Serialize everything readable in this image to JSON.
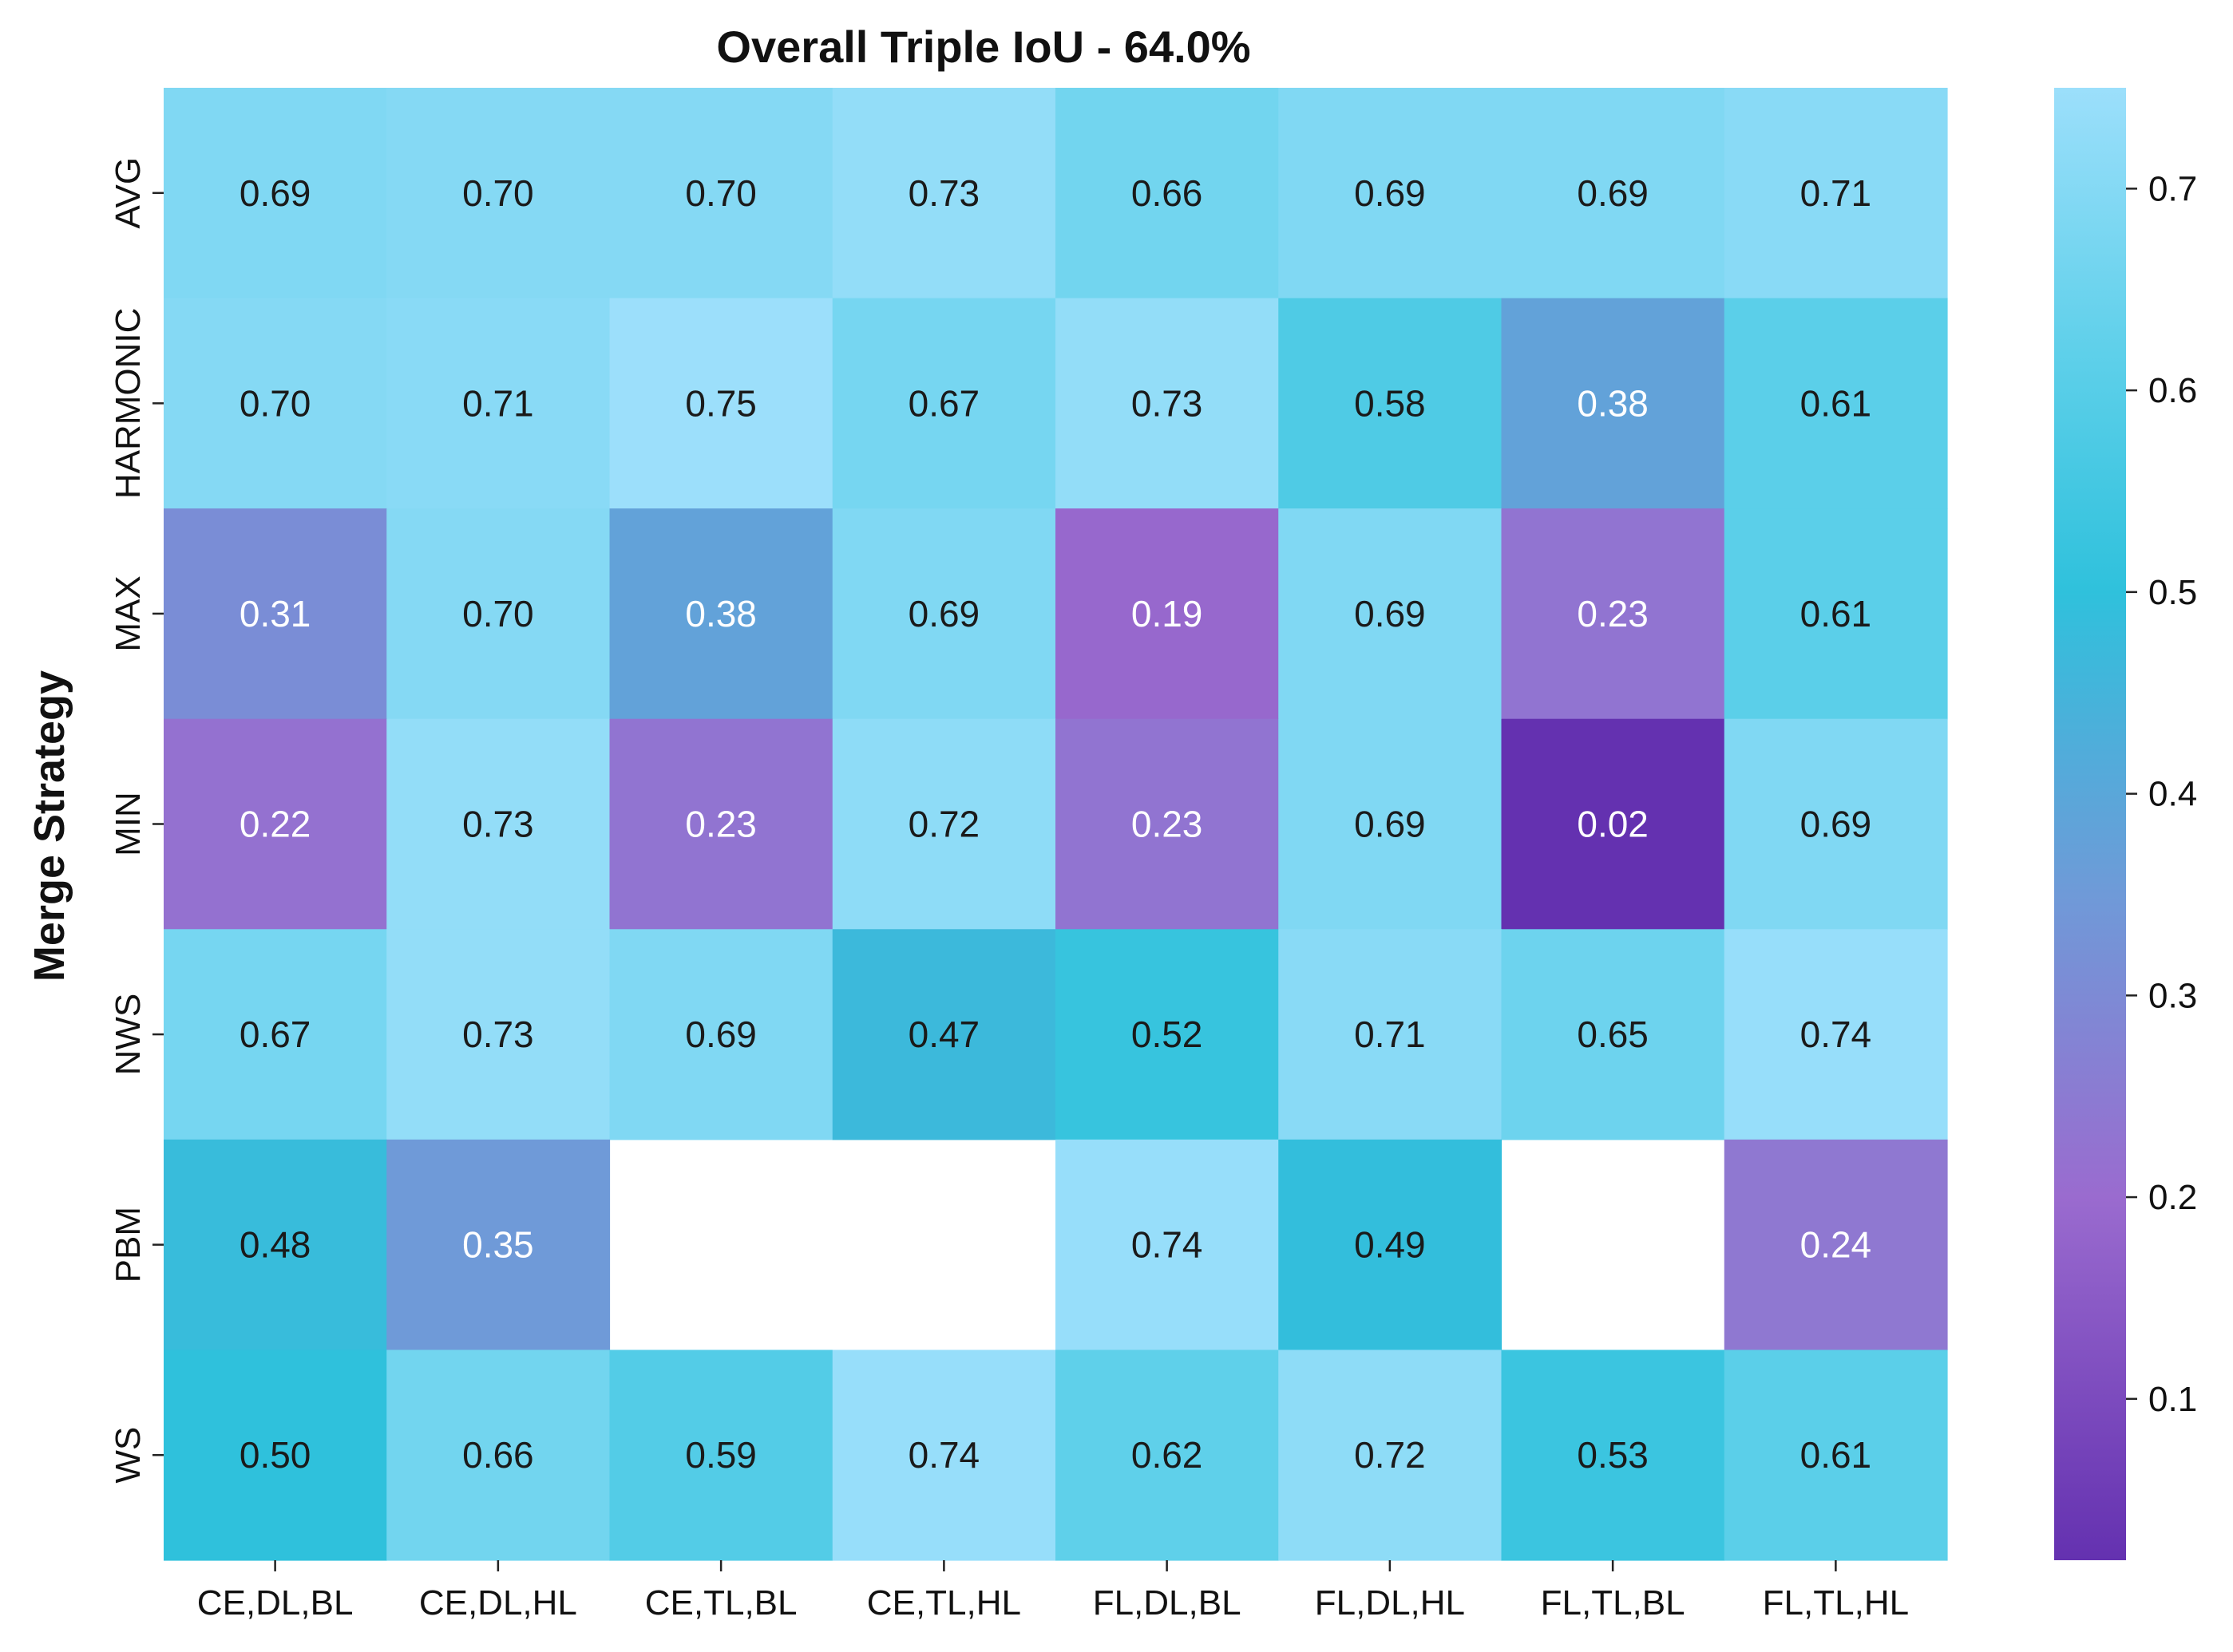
{
  "chart_data": {
    "type": "heatmap",
    "title": "Overall Triple IoU - 64.0%",
    "xlabel": "",
    "ylabel": "Merge Strategy",
    "x_categories": [
      "CE,DL,BL",
      "CE,DL,HL",
      "CE,TL,BL",
      "CE,TL,HL",
      "FL,DL,BL",
      "FL,DL,HL",
      "FL,TL,BL",
      "FL,TL,HL"
    ],
    "y_categories": [
      "AVG",
      "HARMONIC",
      "MAX",
      "MIN",
      "NWS",
      "PBM",
      "WS"
    ],
    "values": [
      [
        0.69,
        0.7,
        0.7,
        0.73,
        0.66,
        0.69,
        0.69,
        0.71
      ],
      [
        0.7,
        0.71,
        0.75,
        0.67,
        0.73,
        0.58,
        0.38,
        0.61
      ],
      [
        0.31,
        0.7,
        0.38,
        0.69,
        0.19,
        0.69,
        0.23,
        0.61
      ],
      [
        0.22,
        0.73,
        0.23,
        0.72,
        0.23,
        0.69,
        0.02,
        0.69
      ],
      [
        0.67,
        0.73,
        0.69,
        0.47,
        0.52,
        0.71,
        0.65,
        0.74
      ],
      [
        0.48,
        0.35,
        null,
        null,
        0.74,
        0.49,
        null,
        0.24
      ],
      [
        0.5,
        0.66,
        0.59,
        0.74,
        0.62,
        0.72,
        0.53,
        0.61
      ]
    ],
    "value_labels": [
      [
        "0.69",
        "0.70",
        "0.70",
        "0.73",
        "0.66",
        "0.69",
        "0.69",
        "0.71"
      ],
      [
        "0.70",
        "0.71",
        "0.75",
        "0.67",
        "0.73",
        "0.58",
        "0.38",
        "0.61"
      ],
      [
        "0.31",
        "0.70",
        "0.38",
        "0.69",
        "0.19",
        "0.69",
        "0.23",
        "0.61"
      ],
      [
        "0.22",
        "0.73",
        "0.23",
        "0.72",
        "0.23",
        "0.69",
        "0.02",
        "0.69"
      ],
      [
        "0.67",
        "0.73",
        "0.69",
        "0.47",
        "0.52",
        "0.71",
        "0.65",
        "0.74"
      ],
      [
        "0.48",
        "0.35",
        "",
        "",
        "0.74",
        "0.49",
        "",
        "0.24"
      ],
      [
        "0.50",
        "0.66",
        "0.59",
        "0.74",
        "0.62",
        "0.72",
        "0.53",
        "0.61"
      ]
    ],
    "vmin": 0.02,
    "vmax": 0.75,
    "colorbar_ticks": [
      0.1,
      0.2,
      0.3,
      0.4,
      0.5,
      0.6,
      0.7
    ],
    "colorbar_tick_labels": [
      "0.1",
      "0.2",
      "0.3",
      "0.4",
      "0.5",
      "0.6",
      "0.7"
    ],
    "colormap": [
      {
        "v": 0.02,
        "color": "#6431b0"
      },
      {
        "v": 0.2,
        "color": "#9a6bcf"
      },
      {
        "v": 0.35,
        "color": "#6f9ad8"
      },
      {
        "v": 0.5,
        "color": "#2fc1dc"
      },
      {
        "v": 0.62,
        "color": "#5fd0ea"
      },
      {
        "v": 0.75,
        "color": "#9cdffb"
      }
    ],
    "dark_text_color": "#1a1a1a",
    "light_text_color": "#ffffff",
    "legend_position": "right"
  }
}
